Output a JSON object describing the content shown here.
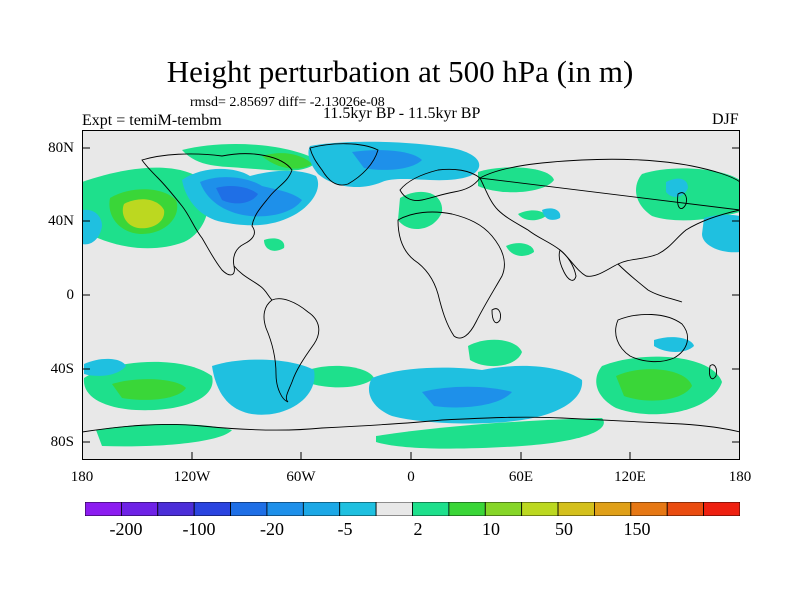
{
  "title": "Height perturbation at 500 hPa (in m)",
  "stats_line": "rmsd= 2.85697  diff= -2.13026e-08",
  "period": "11.5kyr BP - 11.5kyr BP",
  "experiment": "Expt = temiM-tembm",
  "season": "DJF",
  "lat_labels": [
    "80N",
    "40N",
    "0",
    "40S",
    "80S"
  ],
  "lon_labels": [
    "180",
    "120W",
    "60W",
    "0",
    "60E",
    "120E",
    "180"
  ],
  "colorbar": {
    "colors": [
      "#8c1cf0",
      "#6e22e6",
      "#4b2ed8",
      "#2a44e0",
      "#1f6fe6",
      "#1e90ea",
      "#1ca8e6",
      "#1fc0e0",
      "#e8e8e8",
      "#1ee08c",
      "#3ad638",
      "#86d628",
      "#bcd820",
      "#d4c01c",
      "#e0a018",
      "#e67814",
      "#ea4c10",
      "#ee2010"
    ],
    "labels": [
      "-200",
      "-100",
      "-20",
      "-5",
      "2",
      "10",
      "50",
      "150"
    ]
  },
  "colors": {
    "background": "#e8e8e8",
    "coast": "#000000",
    "neg_weak": "#1fc0e0",
    "neg_mid": "#1e90ea",
    "neg_strong": "#1f6fe6",
    "pos_weak": "#1ee08c",
    "pos_mid": "#3ad638",
    "pos_strong": "#bcd820"
  }
}
